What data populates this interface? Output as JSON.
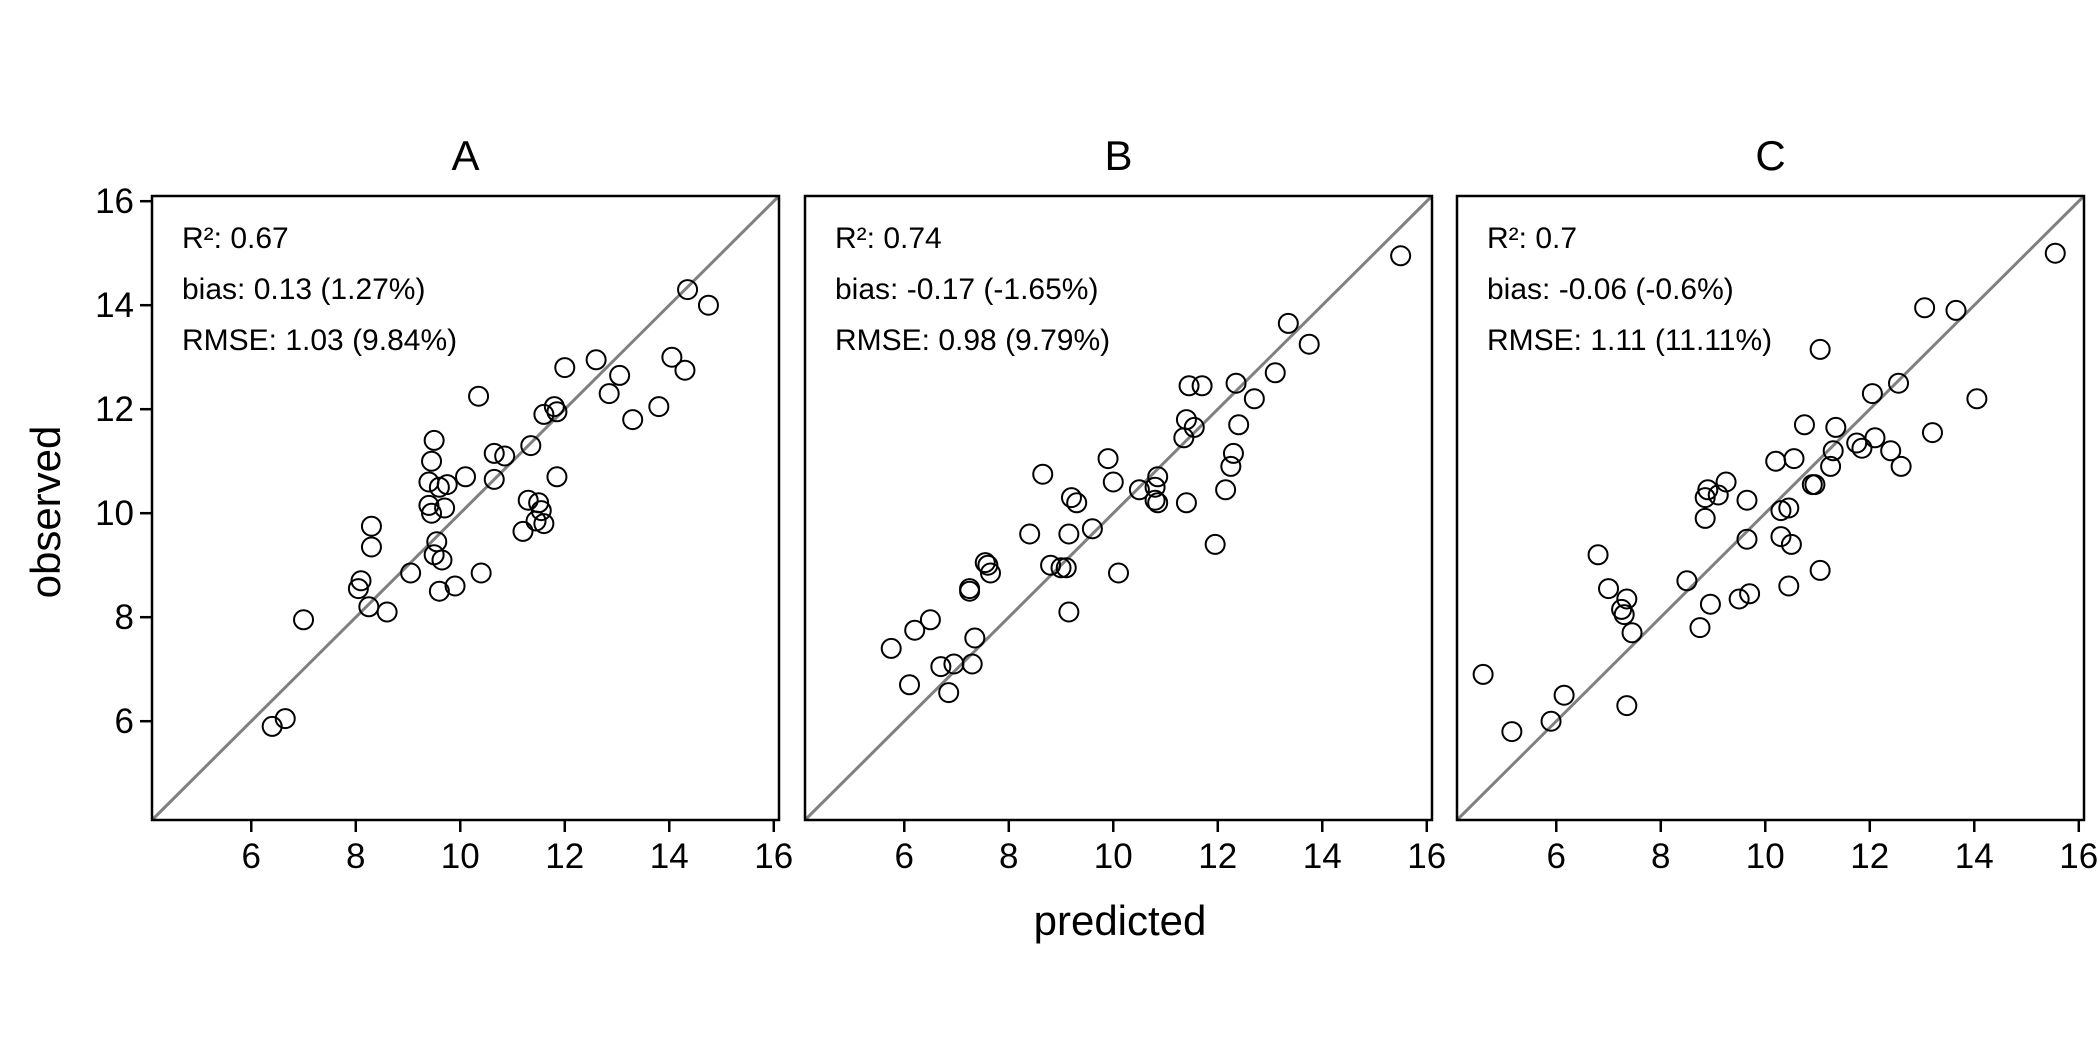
{
  "chart_data": [
    {
      "type": "scatter",
      "title": "A",
      "xlabel": "predicted",
      "ylabel": "observed",
      "xlim": [
        4.1,
        16.1
      ],
      "ylim": [
        4.1,
        16.1
      ],
      "xticks": [
        6,
        8,
        10,
        12,
        14,
        16
      ],
      "yticks": [
        6,
        8,
        10,
        12,
        14,
        16
      ],
      "reference_line": "y = x",
      "stats": [
        "R²: 0.67",
        "bias: 0.13 (1.27%)",
        "RMSE: 1.03 (9.84%)"
      ],
      "points": [
        [
          6.4,
          5.9
        ],
        [
          6.65,
          6.05
        ],
        [
          7.0,
          7.95
        ],
        [
          8.05,
          8.55
        ],
        [
          8.1,
          8.7
        ],
        [
          8.25,
          8.2
        ],
        [
          8.3,
          9.35
        ],
        [
          8.3,
          9.75
        ],
        [
          8.6,
          8.1
        ],
        [
          9.05,
          8.85
        ],
        [
          9.4,
          10.15
        ],
        [
          9.4,
          10.6
        ],
        [
          9.45,
          11.0
        ],
        [
          9.45,
          10.0
        ],
        [
          9.5,
          11.4
        ],
        [
          9.5,
          9.2
        ],
        [
          9.55,
          9.45
        ],
        [
          9.6,
          8.5
        ],
        [
          9.6,
          10.5
        ],
        [
          9.65,
          9.1
        ],
        [
          9.7,
          10.1
        ],
        [
          9.75,
          10.55
        ],
        [
          9.9,
          8.6
        ],
        [
          10.1,
          10.7
        ],
        [
          10.35,
          12.25
        ],
        [
          10.4,
          8.85
        ],
        [
          10.65,
          11.15
        ],
        [
          10.65,
          10.65
        ],
        [
          10.85,
          11.1
        ],
        [
          11.2,
          9.65
        ],
        [
          11.3,
          10.25
        ],
        [
          11.35,
          11.3
        ],
        [
          11.45,
          9.85
        ],
        [
          11.5,
          10.2
        ],
        [
          11.55,
          10.05
        ],
        [
          11.6,
          9.8
        ],
        [
          11.6,
          11.9
        ],
        [
          11.8,
          12.05
        ],
        [
          11.85,
          11.95
        ],
        [
          11.85,
          10.7
        ],
        [
          12.0,
          12.8
        ],
        [
          12.6,
          12.95
        ],
        [
          12.85,
          12.3
        ],
        [
          13.05,
          12.65
        ],
        [
          13.3,
          11.8
        ],
        [
          13.8,
          12.05
        ],
        [
          14.05,
          13.0
        ],
        [
          14.3,
          12.75
        ],
        [
          14.35,
          14.3
        ],
        [
          14.75,
          14.0
        ]
      ]
    },
    {
      "type": "scatter",
      "title": "B",
      "xlabel": "predicted",
      "ylabel": "observed",
      "xlim": [
        4.1,
        16.1
      ],
      "ylim": [
        4.1,
        16.1
      ],
      "xticks": [
        6,
        8,
        10,
        12,
        14,
        16
      ],
      "yticks": [
        6,
        8,
        10,
        12,
        14,
        16
      ],
      "reference_line": "y = x",
      "stats": [
        "R²: 0.74",
        "bias: -0.17 (-1.65%)",
        "RMSE: 0.98 (9.79%)"
      ],
      "points": [
        [
          5.75,
          7.4
        ],
        [
          6.1,
          6.7
        ],
        [
          6.2,
          7.75
        ],
        [
          6.5,
          7.95
        ],
        [
          6.7,
          7.05
        ],
        [
          6.85,
          6.55
        ],
        [
          6.95,
          7.1
        ],
        [
          7.25,
          8.55
        ],
        [
          7.25,
          8.5
        ],
        [
          7.3,
          7.1
        ],
        [
          7.35,
          7.6
        ],
        [
          7.55,
          9.05
        ],
        [
          7.6,
          9.0
        ],
        [
          7.65,
          8.85
        ],
        [
          8.4,
          9.6
        ],
        [
          8.65,
          10.75
        ],
        [
          8.8,
          9.0
        ],
        [
          9.0,
          8.95
        ],
        [
          9.1,
          8.95
        ],
        [
          9.15,
          8.1
        ],
        [
          9.15,
          9.6
        ],
        [
          9.2,
          10.3
        ],
        [
          9.3,
          10.2
        ],
        [
          9.6,
          9.7
        ],
        [
          9.9,
          11.05
        ],
        [
          10.0,
          10.6
        ],
        [
          10.1,
          8.85
        ],
        [
          10.5,
          10.45
        ],
        [
          10.8,
          10.25
        ],
        [
          10.8,
          10.5
        ],
        [
          10.85,
          10.7
        ],
        [
          10.85,
          10.2
        ],
        [
          11.35,
          11.45
        ],
        [
          11.4,
          10.2
        ],
        [
          11.4,
          11.8
        ],
        [
          11.45,
          12.45
        ],
        [
          11.55,
          11.65
        ],
        [
          11.7,
          12.45
        ],
        [
          11.95,
          9.4
        ],
        [
          12.15,
          10.45
        ],
        [
          12.25,
          10.9
        ],
        [
          12.3,
          11.15
        ],
        [
          12.35,
          12.5
        ],
        [
          12.4,
          11.7
        ],
        [
          12.7,
          12.2
        ],
        [
          13.1,
          12.7
        ],
        [
          13.35,
          13.65
        ],
        [
          13.75,
          13.25
        ],
        [
          15.5,
          14.95
        ]
      ]
    },
    {
      "type": "scatter",
      "title": "C",
      "xlabel": "predicted",
      "ylabel": "observed",
      "xlim": [
        4.1,
        16.1
      ],
      "ylim": [
        4.1,
        16.1
      ],
      "xticks": [
        6,
        8,
        10,
        12,
        14,
        16
      ],
      "yticks": [
        6,
        8,
        10,
        12,
        14,
        16
      ],
      "reference_line": "y = x",
      "stats": [
        "R²: 0.7",
        "bias: -0.06 (-0.6%)",
        "RMSE: 1.11 (11.11%)"
      ],
      "points": [
        [
          4.6,
          6.9
        ],
        [
          5.15,
          5.8
        ],
        [
          5.9,
          6.0
        ],
        [
          6.15,
          6.5
        ],
        [
          6.8,
          9.2
        ],
        [
          7.0,
          8.55
        ],
        [
          7.25,
          8.15
        ],
        [
          7.3,
          8.05
        ],
        [
          7.35,
          8.35
        ],
        [
          7.35,
          6.3
        ],
        [
          7.45,
          7.7
        ],
        [
          8.5,
          8.7
        ],
        [
          8.75,
          7.8
        ],
        [
          8.85,
          9.9
        ],
        [
          8.85,
          10.3
        ],
        [
          8.9,
          10.45
        ],
        [
          8.95,
          8.25
        ],
        [
          9.1,
          10.35
        ],
        [
          9.25,
          10.6
        ],
        [
          9.5,
          8.35
        ],
        [
          9.65,
          9.5
        ],
        [
          9.65,
          10.25
        ],
        [
          9.7,
          8.45
        ],
        [
          10.2,
          11.0
        ],
        [
          10.3,
          9.55
        ],
        [
          10.3,
          10.05
        ],
        [
          10.45,
          10.1
        ],
        [
          10.45,
          8.6
        ],
        [
          10.5,
          9.4
        ],
        [
          10.55,
          11.05
        ],
        [
          10.75,
          11.7
        ],
        [
          10.9,
          10.55
        ],
        [
          10.95,
          10.55
        ],
        [
          11.05,
          13.15
        ],
        [
          11.05,
          8.9
        ],
        [
          11.25,
          10.9
        ],
        [
          11.3,
          11.2
        ],
        [
          11.35,
          11.65
        ],
        [
          11.75,
          11.35
        ],
        [
          11.85,
          11.25
        ],
        [
          12.05,
          12.3
        ],
        [
          12.1,
          11.45
        ],
        [
          12.4,
          11.2
        ],
        [
          12.55,
          12.5
        ],
        [
          12.6,
          10.9
        ],
        [
          13.05,
          13.95
        ],
        [
          13.2,
          11.55
        ],
        [
          13.65,
          13.9
        ],
        [
          14.05,
          12.2
        ],
        [
          15.55,
          15.0
        ]
      ]
    }
  ]
}
